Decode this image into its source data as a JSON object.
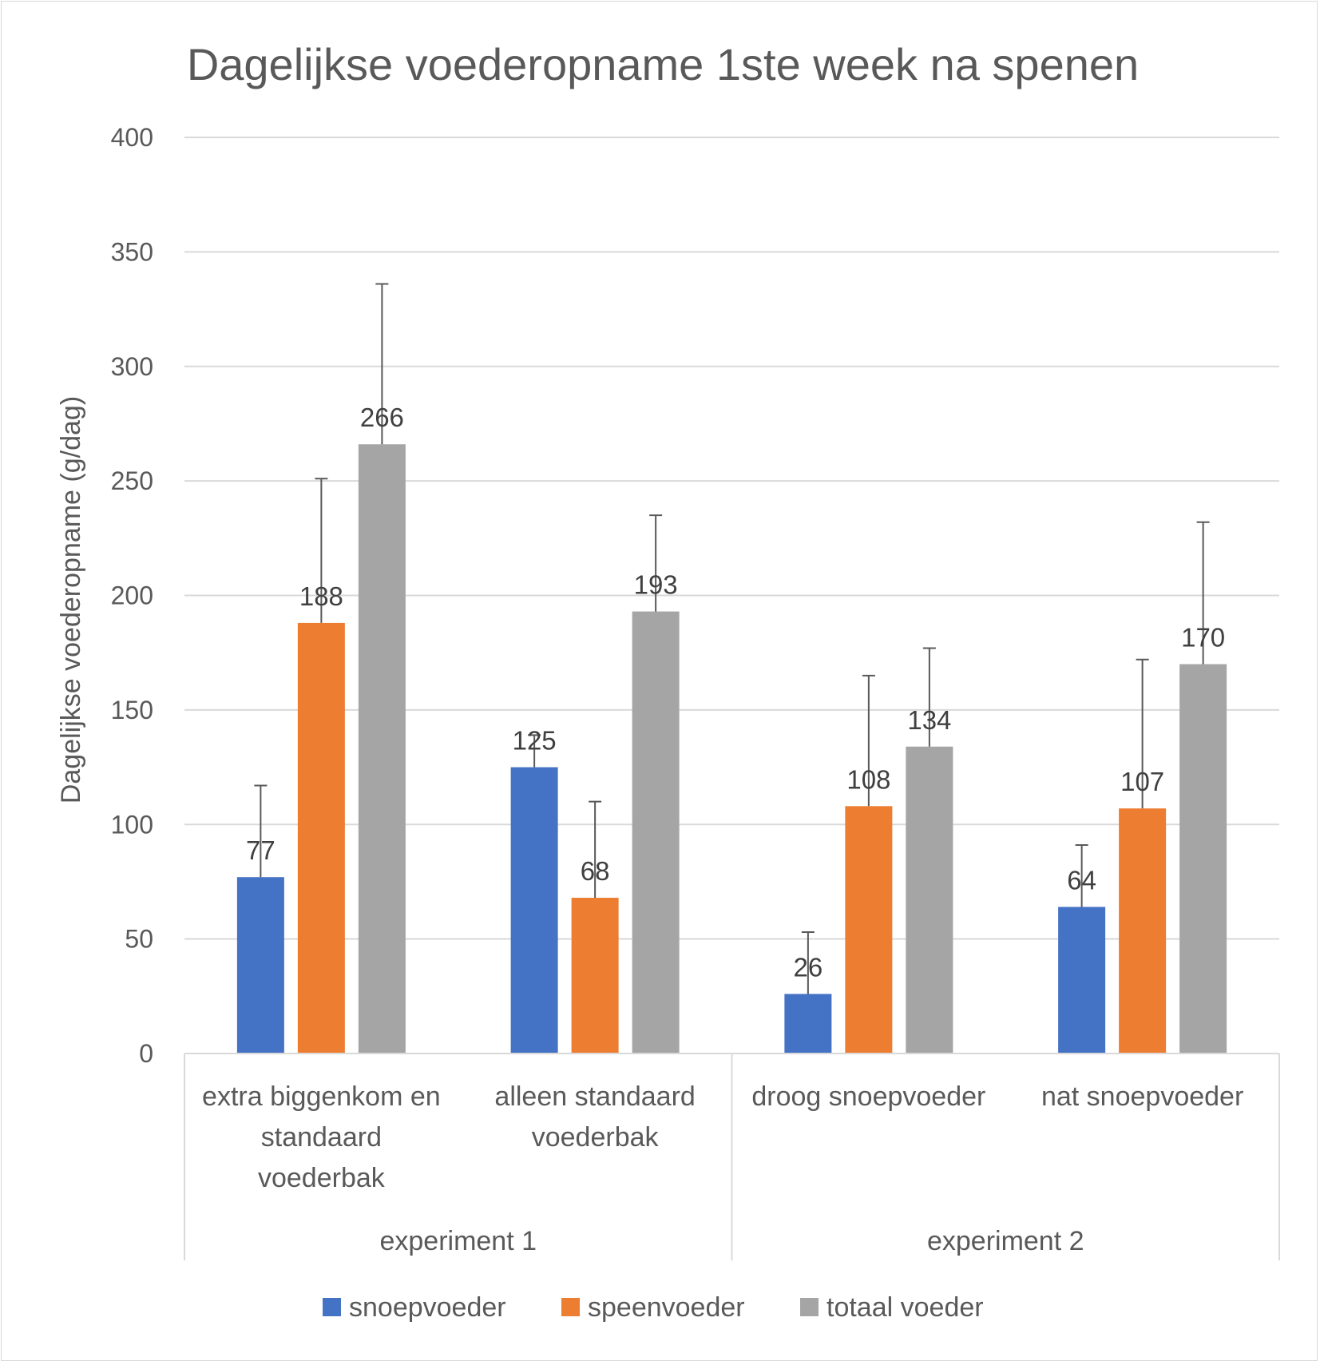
{
  "chart_data": {
    "type": "bar",
    "title": "Dagelijkse voederopname 1ste week na spenen",
    "ylabel": "Dagelijkse voederopname (g/dag)",
    "xlabel": "",
    "ylim": [
      0,
      400
    ],
    "yticks": [
      0,
      50,
      100,
      150,
      200,
      250,
      300,
      350,
      400
    ],
    "grid": true,
    "legend_position": "bottom",
    "categories": [
      {
        "label": "extra biggenkom en standaard voederbak",
        "lines": [
          "extra biggenkom en",
          "standaard",
          "voederbak"
        ],
        "group": "experiment 1"
      },
      {
        "label": "alleen standaard voederbak",
        "lines": [
          "alleen standaard",
          "voederbak"
        ],
        "group": "experiment 1"
      },
      {
        "label": "droog snoepvoeder",
        "lines": [
          "droog snoepvoeder"
        ],
        "group": "experiment 2"
      },
      {
        "label": "nat snoepvoeder",
        "lines": [
          "nat snoepvoeder"
        ],
        "group": "experiment 2"
      }
    ],
    "groups": [
      {
        "label": "experiment 1",
        "count": 2
      },
      {
        "label": "experiment 2",
        "count": 2
      }
    ],
    "series": [
      {
        "name": "snoepvoeder",
        "color": "#4472c4",
        "values": [
          77,
          125,
          26,
          64
        ],
        "error_upper": [
          117,
          139,
          53,
          91
        ]
      },
      {
        "name": "speenvoeder",
        "color": "#ed7d31",
        "values": [
          188,
          68,
          108,
          107
        ],
        "error_upper": [
          251,
          110,
          165,
          172
        ]
      },
      {
        "name": "totaal voeder",
        "color": "#a5a5a5",
        "values": [
          266,
          193,
          134,
          170
        ],
        "error_upper": [
          336,
          235,
          177,
          232
        ]
      }
    ]
  }
}
